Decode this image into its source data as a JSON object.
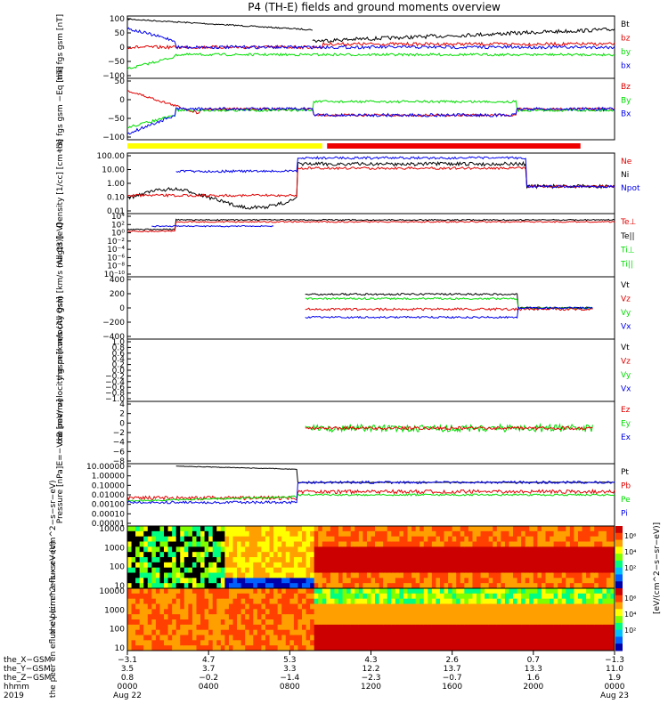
{
  "title": "P4 (TH-E) fields and ground moments overview",
  "colors": {
    "black": "#000000",
    "red": "#e00000",
    "green": "#00dd00",
    "blue": "#0000ee",
    "mode_slow": "#ffff00",
    "mode_fast": "#ee0000"
  },
  "chart_data": [
    {
      "type": "line",
      "ylabel": "the fgs gsm [nT]",
      "yticks": [
        "100",
        "50",
        "0",
        "−50",
        "−100"
      ],
      "ylim": [
        -100,
        100
      ],
      "series": [
        {
          "name": "Bt",
          "color": "black"
        },
        {
          "name": "bz",
          "color": "red"
        },
        {
          "name": "by",
          "color": "green"
        },
        {
          "name": "bx",
          "color": "blue"
        }
      ]
    },
    {
      "type": "line",
      "ylabel": "the fgs gsm −Eq [nT]",
      "yticks": [
        "50",
        "0",
        "−50",
        "−100"
      ],
      "ylim": [
        -120,
        100
      ],
      "series": [
        {
          "name": "Bz",
          "color": "red"
        },
        {
          "name": "By",
          "color": "green"
        },
        {
          "name": "Bx",
          "color": "blue"
        }
      ]
    },
    {
      "type": "line",
      "ylabel": "Density [1/cc] [cm−3]",
      "yticks": [
        "100.00",
        "10.00",
        "1.00",
        "0.10",
        "0.01"
      ],
      "scale": "log",
      "ylim": [
        0.005,
        300
      ],
      "series": [
        {
          "name": "Ne",
          "color": "red"
        },
        {
          "name": "Ni",
          "color": "black"
        },
        {
          "name": "Npot",
          "color": "blue"
        }
      ]
    },
    {
      "type": "line",
      "ylabel": "magt3 [eV]",
      "yticks": [
        "10⁴",
        "10²",
        "10⁰",
        "10⁻²",
        "10⁻⁴",
        "10⁻⁶",
        "10⁻⁸",
        "10⁻¹⁰"
      ],
      "scale": "log",
      "series": [
        {
          "name": "Te⊥",
          "color": "red"
        },
        {
          "name": "Te||",
          "color": "black"
        },
        {
          "name": "Ti⊥",
          "color": "green"
        },
        {
          "name": "Ti||",
          "color": "green"
        }
      ]
    },
    {
      "type": "line",
      "ylabel": "the peir velocity gsm [km/s (All Qs)]",
      "yticks": [
        "400",
        "200",
        "0",
        "−200",
        "−400"
      ],
      "ylim": [
        -400,
        400
      ],
      "series": [
        {
          "name": "Vt",
          "color": "black"
        },
        {
          "name": "Vz",
          "color": "red"
        },
        {
          "name": "Vy",
          "color": "green"
        },
        {
          "name": "Vx",
          "color": "blue"
        }
      ]
    },
    {
      "type": "line",
      "ylabel": "the peer velocity gsm [km/s (All Qs)]",
      "yticks": [
        "1.0",
        "0.8",
        "0.6",
        "0.4",
        "0.2",
        "0.0",
        "−0.2",
        "−0.4",
        "−0.6",
        "−0.8",
        "−1.0"
      ],
      "ylim": [
        -1,
        1
      ],
      "series": [
        {
          "name": "Vt",
          "color": "black"
        },
        {
          "name": "Vz",
          "color": "red"
        },
        {
          "name": "Vy",
          "color": "green"
        },
        {
          "name": "Vx",
          "color": "blue"
        }
      ]
    },
    {
      "type": "line",
      "ylabel": "E=−VxB [mV/m]",
      "yticks": [
        "4",
        "2",
        "0",
        "−2",
        "−4",
        "−6",
        "−8"
      ],
      "ylim": [
        -9,
        5
      ],
      "series": [
        {
          "name": "Ez",
          "color": "red"
        },
        {
          "name": "Ey",
          "color": "green"
        },
        {
          "name": "Ex",
          "color": "blue"
        }
      ]
    },
    {
      "type": "line",
      "ylabel": "Pressure [nPa]",
      "yticks": [
        "10.00000",
        "1.00000",
        "0.10000",
        "0.01000",
        "0.00100",
        "0.00010",
        "0.00001"
      ],
      "scale": "log",
      "series": [
        {
          "name": "Pt",
          "color": "black"
        },
        {
          "name": "Pb",
          "color": "red"
        },
        {
          "name": "Pe",
          "color": "green"
        },
        {
          "name": "Pi",
          "color": "blue"
        }
      ]
    },
    {
      "type": "heatmap",
      "ylabel": "the peir en eflux eV (cm^2−s−sr−eV)",
      "yticks": [
        "10000",
        "1000",
        "100",
        "10"
      ],
      "colorbar_ticks": [
        "10⁶",
        "10⁴",
        "10²"
      ]
    },
    {
      "type": "heatmap",
      "ylabel": "the peer en eflux eV (cm^2−s−sr−eV)",
      "yticks": [
        "10000",
        "1000",
        "100",
        "10"
      ],
      "colorbar_ticks": [
        "10⁶",
        "10⁴",
        "10²"
      ],
      "colorbar_label": "[eV/(cm^2−s−sr−eV)]"
    }
  ],
  "xaxis": {
    "row_labels": [
      "the_X−GSM",
      "the_Y−GSM",
      "the_Z−GSM",
      "hhmm",
      "2019"
    ],
    "columns": [
      [
        "−3.1",
        "3.5",
        "0.8",
        "0000",
        "Aug 22"
      ],
      [
        "4.7",
        "3.7",
        "−0.2",
        "0400",
        ""
      ],
      [
        "5.3",
        "3.3",
        "−1.4",
        "0800",
        ""
      ],
      [
        "4.3",
        "12.2",
        "−2.3",
        "1200",
        ""
      ],
      [
        "2.6",
        "13.7",
        "−0.7",
        "1600",
        ""
      ],
      [
        "0.7",
        "13.3",
        "1.6",
        "2000",
        ""
      ],
      [
        "−1.3",
        "11.0",
        "1.9",
        "0000",
        "Aug 23"
      ]
    ]
  },
  "right_label": "[eV/(cm^2−s−sr−eV)]"
}
